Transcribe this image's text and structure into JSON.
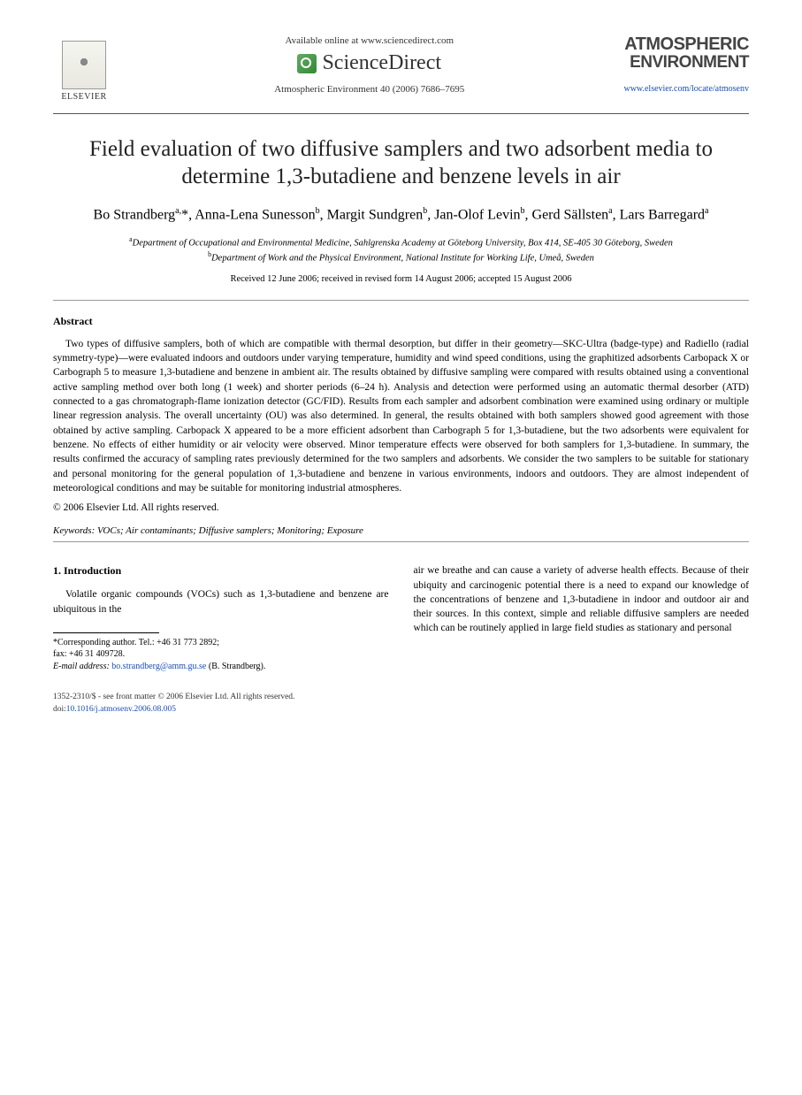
{
  "header": {
    "available_online": "Available online at www.sciencedirect.com",
    "sciencedirect": "ScienceDirect",
    "journal_ref": "Atmospheric Environment 40 (2006) 7686–7695",
    "publisher_name": "ELSEVIER",
    "journal_title_line1": "ATMOSPHERIC",
    "journal_title_line2": "ENVIRONMENT",
    "journal_url": "www.elsevier.com/locate/atmosenv"
  },
  "article": {
    "title": "Field evaluation of two diffusive samplers and two adsorbent media to determine 1,3-butadiene and benzene levels in air",
    "authors_html": "Bo Strandberg<sup>a,</sup>*, Anna-Lena Sunesson<sup>b</sup>, Margit Sundgren<sup>b</sup>, Jan-Olof Levin<sup>b</sup>, Gerd Sällsten<sup>a</sup>, Lars Barregard<sup>a</sup>",
    "affiliations": {
      "a": "Department of Occupational and Environmental Medicine, Sahlgrenska Academy at Göteborg University, Box 414, SE-405 30 Göteborg, Sweden",
      "b": "Department of Work and the Physical Environment, National Institute for Working Life, Umeå, Sweden"
    },
    "dates": "Received 12 June 2006; received in revised form 14 August 2006; accepted 15 August 2006"
  },
  "abstract": {
    "heading": "Abstract",
    "body": "Two types of diffusive samplers, both of which are compatible with thermal desorption, but differ in their geometry—SKC-Ultra (badge-type) and Radiello (radial symmetry-type)—were evaluated indoors and outdoors under varying temperature, humidity and wind speed conditions, using the graphitized adsorbents Carbopack X or Carbograph 5 to measure 1,3-butadiene and benzene in ambient air. The results obtained by diffusive sampling were compared with results obtained using a conventional active sampling method over both long (1 week) and shorter periods (6–24 h). Analysis and detection were performed using an automatic thermal desorber (ATD) connected to a gas chromatograph-flame ionization detector (GC/FID). Results from each sampler and adsorbent combination were examined using ordinary or multiple linear regression analysis. The overall uncertainty (OU) was also determined. In general, the results obtained with both samplers showed good agreement with those obtained by active sampling. Carbopack X appeared to be a more efficient adsorbent than Carbograph 5 for 1,3-butadiene, but the two adsorbents were equivalent for benzene. No effects of either humidity or air velocity were observed. Minor temperature effects were observed for both samplers for 1,3-butadiene. In summary, the results confirmed the accuracy of sampling rates previously determined for the two samplers and adsorbents. We consider the two samplers to be suitable for stationary and personal monitoring for the general population of 1,3-butadiene and benzene in various environments, indoors and outdoors. They are almost independent of meteorological conditions and may be suitable for monitoring industrial atmospheres.",
    "copyright": "© 2006 Elsevier Ltd. All rights reserved."
  },
  "keywords": {
    "label": "Keywords:",
    "text": "VOCs; Air contaminants; Diffusive samplers; Monitoring; Exposure"
  },
  "introduction": {
    "heading": "1. Introduction",
    "col1": "Volatile organic compounds (VOCs) such as 1,3-butadiene and benzene are ubiquitous in the",
    "col2": "air we breathe and can cause a variety of adverse health effects. Because of their ubiquity and carcinogenic potential there is a need to expand our knowledge of the concentrations of benzene and 1,3-butadiene in indoor and outdoor air and their sources. In this context, simple and reliable diffusive samplers are needed which can be routinely applied in large field studies as stationary and personal"
  },
  "footnotes": {
    "corresponding": "*Corresponding author. Tel.: +46 31 773 2892;",
    "fax": "fax: +46 31 409728.",
    "email_label": "E-mail address:",
    "email": "bo.strandberg@amm.gu.se",
    "email_suffix": "(B. Strandberg)."
  },
  "footer": {
    "line1": "1352-2310/$ - see front matter © 2006 Elsevier Ltd. All rights reserved.",
    "doi_label": "doi:",
    "doi": "10.1016/j.atmosenv.2006.08.005"
  },
  "colors": {
    "link": "#1a4db3",
    "text": "#000000",
    "rule": "#555555"
  }
}
